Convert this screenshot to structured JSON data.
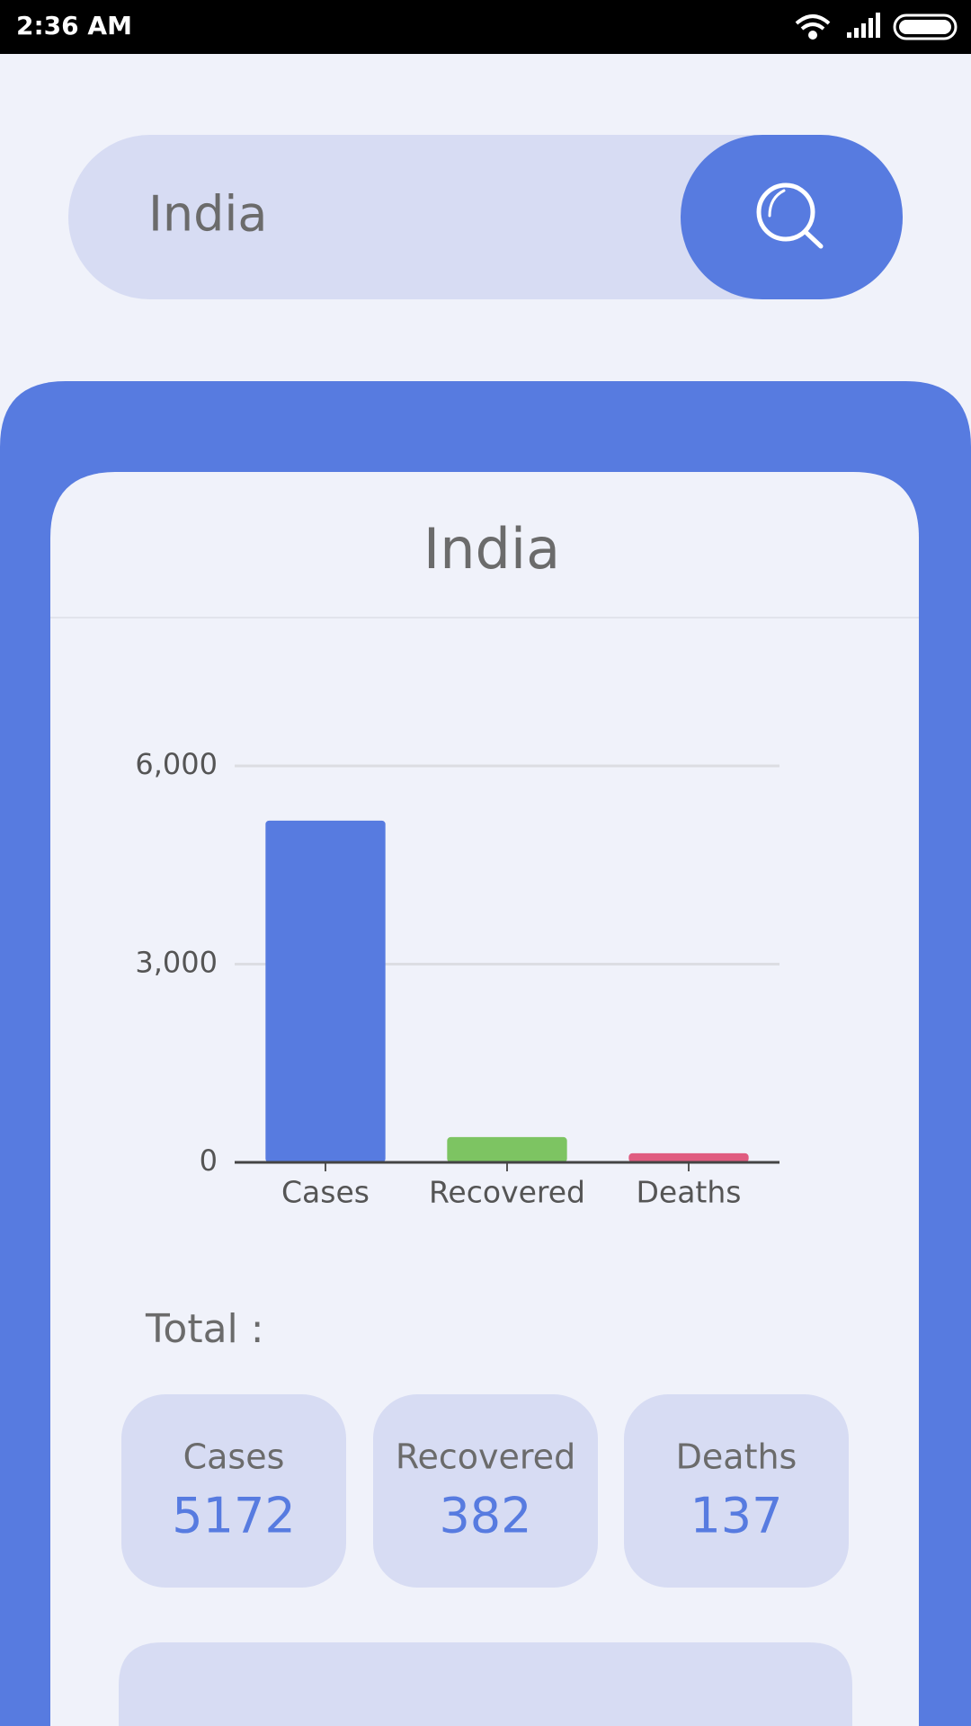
{
  "status_bar": {
    "time": "2:36 AM"
  },
  "search": {
    "query": "India"
  },
  "card": {
    "title": "India"
  },
  "chart_data": {
    "type": "bar",
    "categories": [
      "Cases",
      "Recovered",
      "Deaths"
    ],
    "values": [
      5172,
      382,
      137
    ],
    "colors": [
      "#577be0",
      "#7dc462",
      "#e05c80"
    ],
    "ylim": [
      0,
      6000
    ],
    "yticks": [
      0,
      {
        "value": 3000,
        "label": "3,000"
      },
      {
        "value": 6000,
        "label": "6,000"
      }
    ],
    "grid": true
  },
  "totals": {
    "label": "Total :",
    "items": [
      {
        "label": "Cases",
        "value": 5172
      },
      {
        "label": "Recovered",
        "value": 382
      },
      {
        "label": "Deaths",
        "value": 137
      }
    ]
  }
}
